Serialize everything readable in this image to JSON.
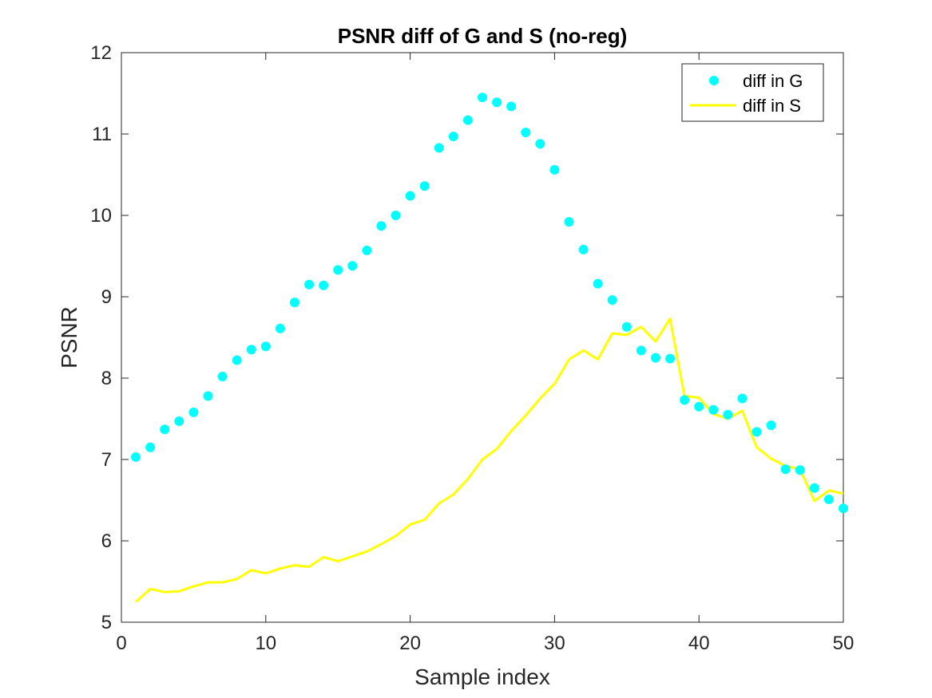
{
  "chart_data": {
    "type": "scatter",
    "title": "PSNR diff of G and S (no-reg)",
    "xlabel": "Sample index",
    "ylabel": "PSNR",
    "xlim": [
      0,
      50
    ],
    "ylim": [
      5,
      12
    ],
    "xticks": [
      0,
      10,
      20,
      30,
      40,
      50
    ],
    "yticks": [
      5,
      6,
      7,
      8,
      9,
      10,
      11,
      12
    ],
    "grid": false,
    "legend_location": "top-right",
    "x": [
      1,
      2,
      3,
      4,
      5,
      6,
      7,
      8,
      9,
      10,
      11,
      12,
      13,
      14,
      15,
      16,
      17,
      18,
      19,
      20,
      21,
      22,
      23,
      24,
      25,
      26,
      27,
      28,
      29,
      30,
      31,
      32,
      33,
      34,
      35,
      36,
      37,
      38,
      39,
      40,
      41,
      42,
      43,
      44,
      45,
      46,
      47,
      48,
      49,
      50
    ],
    "series": [
      {
        "name": "diff in G",
        "style": "markers",
        "color": "#00FFFF",
        "values": [
          7.03,
          7.15,
          7.37,
          7.47,
          7.58,
          7.78,
          8.02,
          8.22,
          8.35,
          8.39,
          8.61,
          8.93,
          9.15,
          9.14,
          9.33,
          9.38,
          9.57,
          9.87,
          10.0,
          10.24,
          10.36,
          10.83,
          10.97,
          11.17,
          11.45,
          11.39,
          11.34,
          11.02,
          10.88,
          10.56,
          9.92,
          9.58,
          9.16,
          8.96,
          8.63,
          8.34,
          8.25,
          8.24,
          7.73,
          7.65,
          7.61,
          7.55,
          7.75,
          7.34,
          7.42,
          6.88,
          6.87,
          6.65,
          6.51,
          6.4
        ]
      },
      {
        "name": "diff in S",
        "style": "line",
        "color": "#FFFF00",
        "values": [
          5.25,
          5.41,
          5.37,
          5.38,
          5.44,
          5.49,
          5.49,
          5.53,
          5.64,
          5.6,
          5.66,
          5.7,
          5.68,
          5.8,
          5.75,
          5.81,
          5.87,
          5.96,
          6.06,
          6.2,
          6.26,
          6.46,
          6.57,
          6.76,
          7.0,
          7.13,
          7.35,
          7.54,
          7.75,
          7.93,
          8.23,
          8.34,
          8.23,
          8.55,
          8.53,
          8.63,
          8.45,
          8.73,
          7.78,
          7.76,
          7.56,
          7.5,
          7.6,
          7.15,
          7.01,
          6.92,
          6.88,
          6.49,
          6.62,
          6.58
        ]
      }
    ]
  }
}
